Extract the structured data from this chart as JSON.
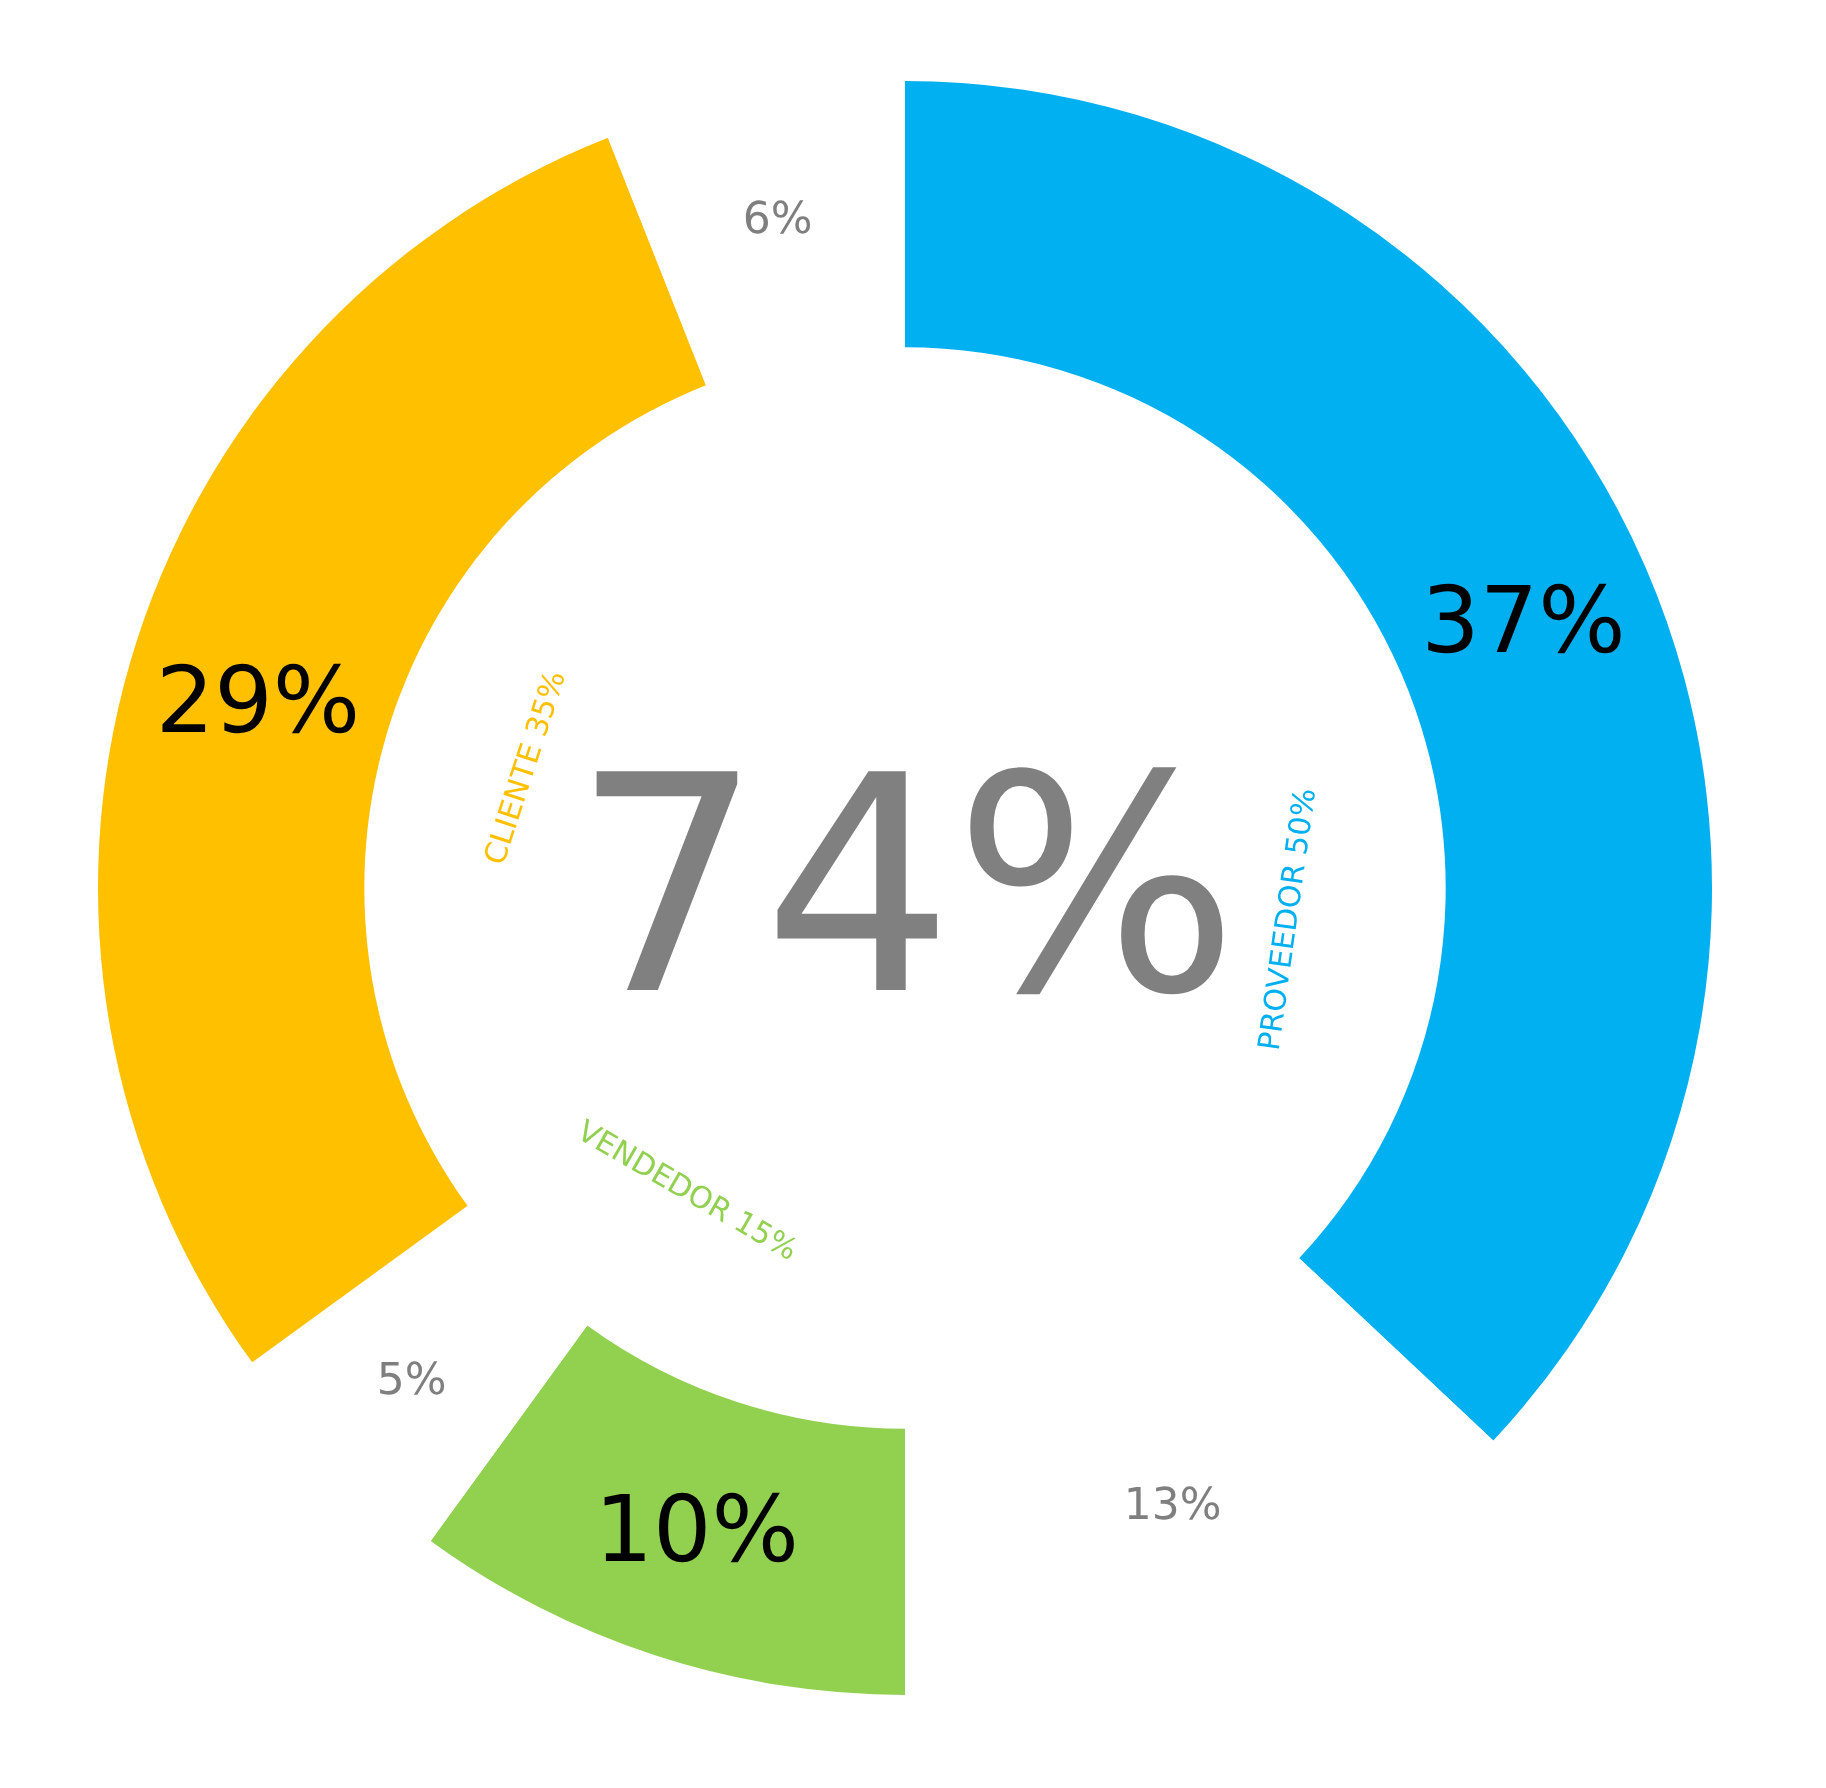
{
  "chart_data": {
    "type": "donut",
    "categories": [
      null,
      null,
      null,
      null,
      null,
      null
    ],
    "values": [
      37,
      13,
      10,
      5,
      29,
      6
    ],
    "colors": [
      "#00b0f0",
      "#ffffff",
      "#92d050",
      "#ffffff",
      "#ffc000",
      "#ffffff"
    ],
    "value_labels": [
      "37%",
      "13%",
      "10%",
      "5%",
      "29%",
      "6%"
    ],
    "annotations": [
      "74%",
      "PROVEEDOR 50%",
      "VENDEDOR 15%",
      "CLIENTE 35%"
    ],
    "legend": false
  }
}
